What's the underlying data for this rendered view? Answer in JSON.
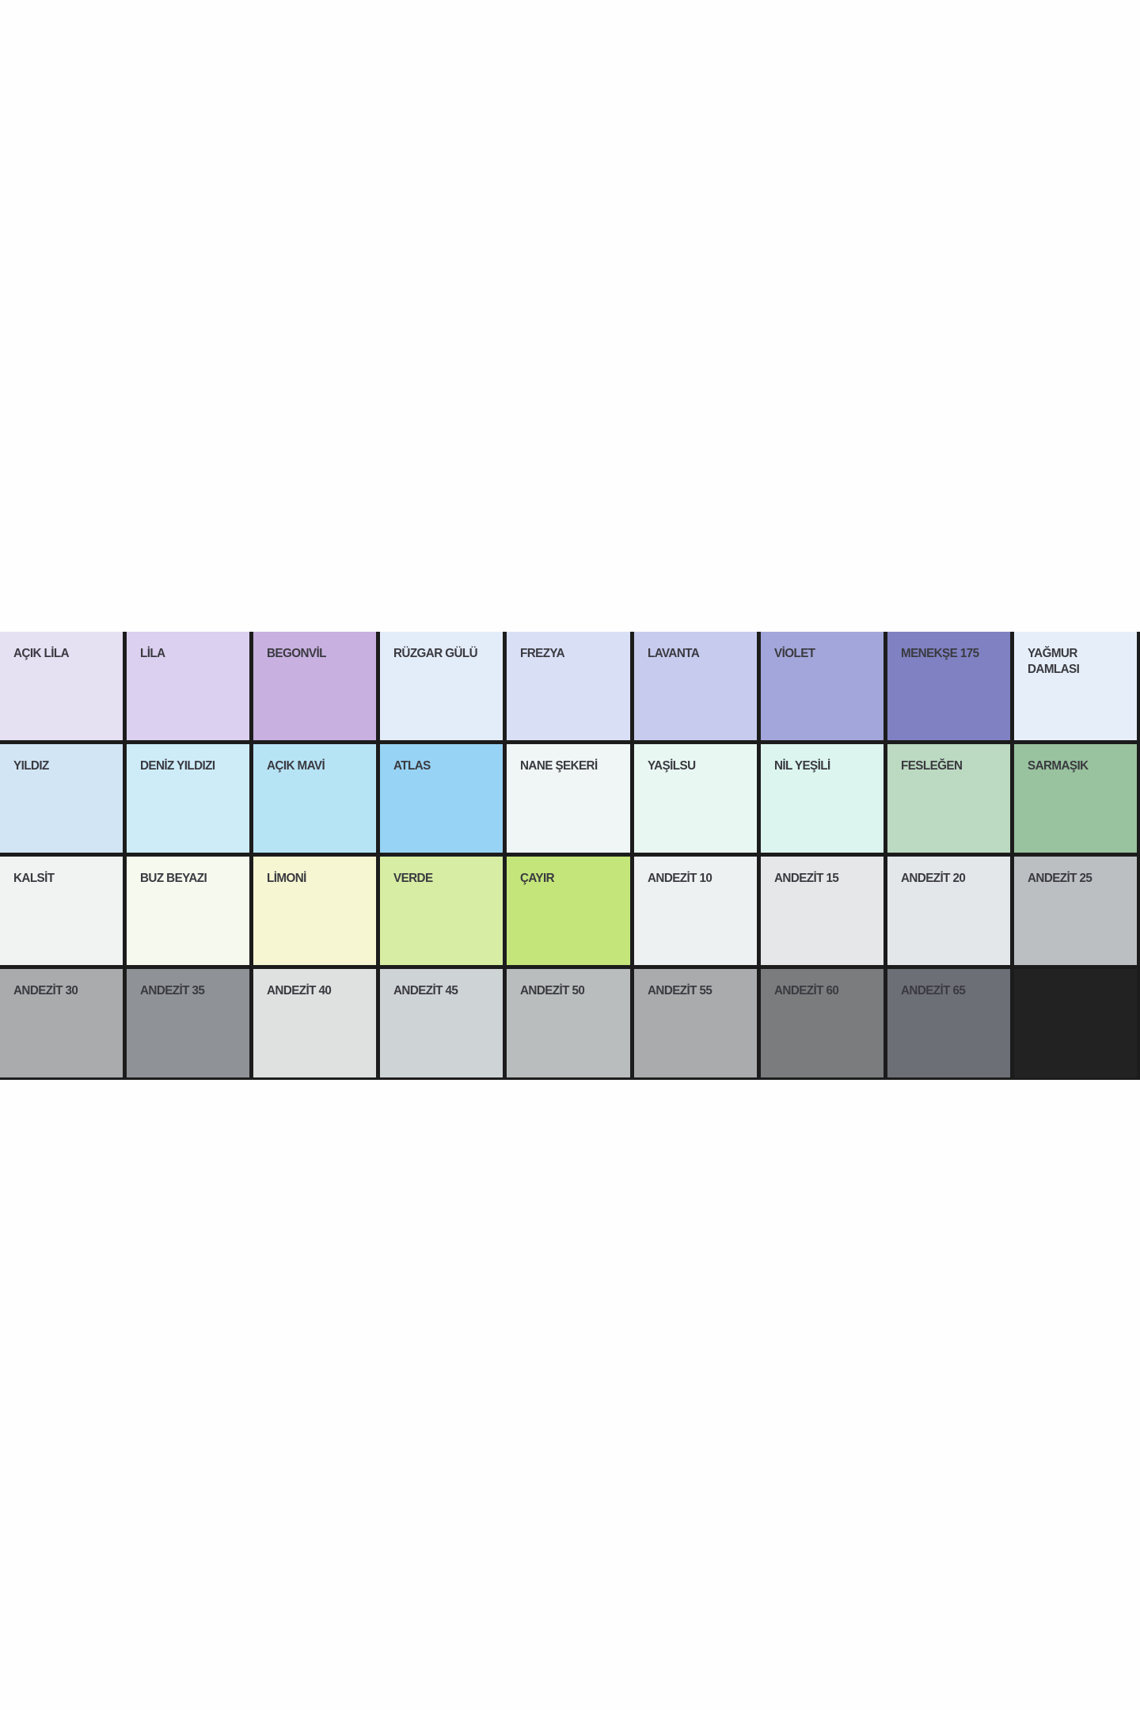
{
  "swatches": [
    {
      "name": "AÇIK LİLA",
      "color": "#e6e0f3"
    },
    {
      "name": "LİLA",
      "color": "#dbd0ef"
    },
    {
      "name": "BEGONVİL",
      "color": "#c8b0e0"
    },
    {
      "name": "RÜZGAR GÜLÜ",
      "color": "#e3ecf9"
    },
    {
      "name": "FREZYA",
      "color": "#d9e0f6"
    },
    {
      "name": "LAVANTA",
      "color": "#c7cbee"
    },
    {
      "name": "VİOLET",
      "color": "#a3a6da"
    },
    {
      "name": "MENEKŞE 175",
      "color": "#7f81c2"
    },
    {
      "name": "YAĞMUR\nDAMLASI",
      "color": "#e6eff9"
    },
    {
      "name": "YILDIZ",
      "color": "#d2e5f4"
    },
    {
      "name": "DENİZ YILDIZI",
      "color": "#cdecf8"
    },
    {
      "name": "AÇIK MAVİ",
      "color": "#b7e4f5"
    },
    {
      "name": "ATLAS",
      "color": "#97d3f5"
    },
    {
      "name": "NANE ŞEKERİ",
      "color": "#eff6f5"
    },
    {
      "name": "YAŞİLSU",
      "color": "#e9f7f3"
    },
    {
      "name": "NİL YEŞİLİ",
      "color": "#dcf5ef"
    },
    {
      "name": "FESLEĞEN",
      "color": "#bcd9c1"
    },
    {
      "name": "SARMAŞIK",
      "color": "#99c29e"
    },
    {
      "name": "KALSİT",
      "color": "#f1f2f2"
    },
    {
      "name": "BUZ BEYAZI",
      "color": "#f5f9ee"
    },
    {
      "name": "LİMONİ",
      "color": "#f6f6d2"
    },
    {
      "name": "VERDE",
      "color": "#d6eda3"
    },
    {
      "name": "ÇAYIR",
      "color": "#c4e57a"
    },
    {
      "name": "ANDEZİT 10",
      "color": "#eef1f2"
    },
    {
      "name": "ANDEZİT 15",
      "color": "#e6e7e9"
    },
    {
      "name": "ANDEZİT 20",
      "color": "#e3e7ea"
    },
    {
      "name": "ANDEZİT 25",
      "color": "#bcbfc2"
    },
    {
      "name": "ANDEZİT 30",
      "color": "#a9abad"
    },
    {
      "name": "ANDEZİT 35",
      "color": "#8f9397"
    },
    {
      "name": "ANDEZİT 40",
      "color": "#dfe0e0"
    },
    {
      "name": "ANDEZİT 45",
      "color": "#ced3d6"
    },
    {
      "name": "ANDEZİT 50",
      "color": "#b9bdbd"
    },
    {
      "name": "ANDEZİT 55",
      "color": "#a9abac"
    },
    {
      "name": "ANDEZİT 60",
      "color": "#7a7c7d"
    },
    {
      "name": "ANDEZİT 65",
      "color": "#6d6f76"
    },
    {
      "name": "",
      "color": "#222222"
    }
  ]
}
